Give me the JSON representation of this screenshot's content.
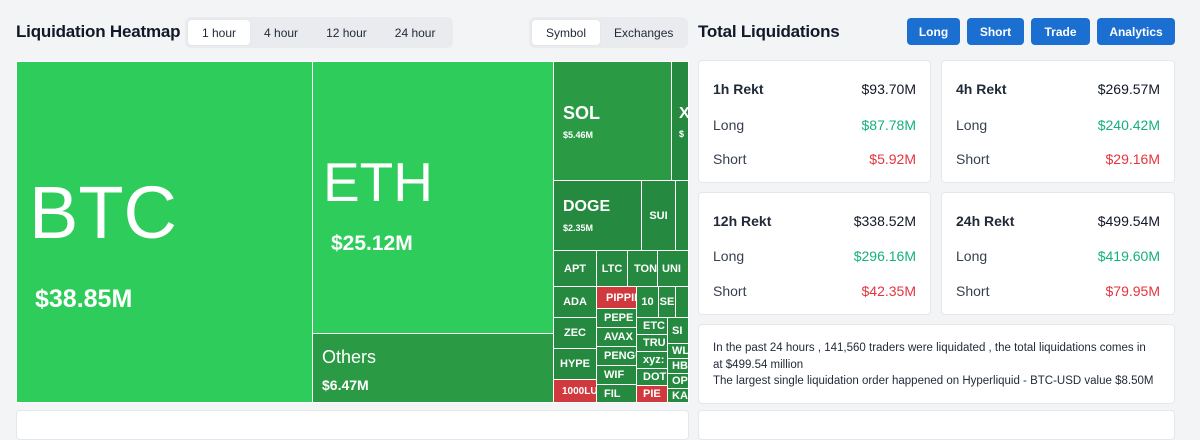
{
  "header": {
    "title": "Liquidation Heatmap",
    "time_tabs": [
      "1 hour",
      "4 hour",
      "12 hour",
      "24 hour"
    ],
    "active_time_tab": "1 hour",
    "view_tabs": [
      "Symbol",
      "Exchanges"
    ],
    "active_view_tab": "Symbol"
  },
  "totals": {
    "title": "Total Liquidations",
    "buttons": [
      "Long",
      "Short",
      "Trade",
      "Analytics"
    ]
  },
  "heatmap": {
    "btc": {
      "symbol": "BTC",
      "value": "$38.85M"
    },
    "eth": {
      "symbol": "ETH",
      "value": "$25.12M"
    },
    "others": {
      "symbol": "Others",
      "value": "$6.47M"
    },
    "sol": {
      "symbol": "SOL",
      "value": "$5.46M"
    },
    "doge": {
      "symbol": "DOGE",
      "value": "$2.35M"
    },
    "small": {
      "x": "X",
      "x_val": "$",
      "sui": "SUI",
      "apt": "APT",
      "ltc": "LTC",
      "ton": "TON",
      "uni": "UNI",
      "ada": "ADA",
      "pippin": "PIPPIN",
      "ten": "10",
      "se": "SE",
      "pepe": "PEPE",
      "zec": "ZEC",
      "etc": "ETC",
      "si": "SI",
      "avax": "AVAX",
      "tru": "TRU",
      "hype": "HYPE",
      "pengu": "PENGU",
      "xyz": "xyz:",
      "wl": "WL",
      "wif": "WIF",
      "hba": "HBA",
      "lu": "1000LU",
      "dot": "DOT",
      "op": "OP",
      "fil": "FIL",
      "pie": "PIE",
      "kas": "KAS"
    }
  },
  "cards": [
    {
      "title": "1h Rekt",
      "total": "$93.70M",
      "long_label": "Long",
      "long": "$87.78M",
      "short_label": "Short",
      "short": "$5.92M"
    },
    {
      "title": "4h Rekt",
      "total": "$269.57M",
      "long_label": "Long",
      "long": "$240.42M",
      "short_label": "Short",
      "short": "$29.16M"
    },
    {
      "title": "12h Rekt",
      "total": "$338.52M",
      "long_label": "Long",
      "long": "$296.16M",
      "short_label": "Short",
      "short": "$42.35M"
    },
    {
      "title": "24h Rekt",
      "total": "$499.54M",
      "long_label": "Long",
      "long": "$419.60M",
      "short_label": "Short",
      "short": "$79.95M"
    }
  ],
  "summary": {
    "line1": "In the past 24 hours , 141,560 traders were liquidated , the total liquidations comes in",
    "line2": "at $499.54 million",
    "line3": "The largest single liquidation order happened on Hyperliquid - BTC-USD value $8.50M"
  },
  "colors": {
    "accent": "#1a6fd0",
    "long": "#14b17a",
    "short": "#e5343f",
    "heat_green": "#2ecc5a",
    "heat_red": "#d0393d"
  }
}
